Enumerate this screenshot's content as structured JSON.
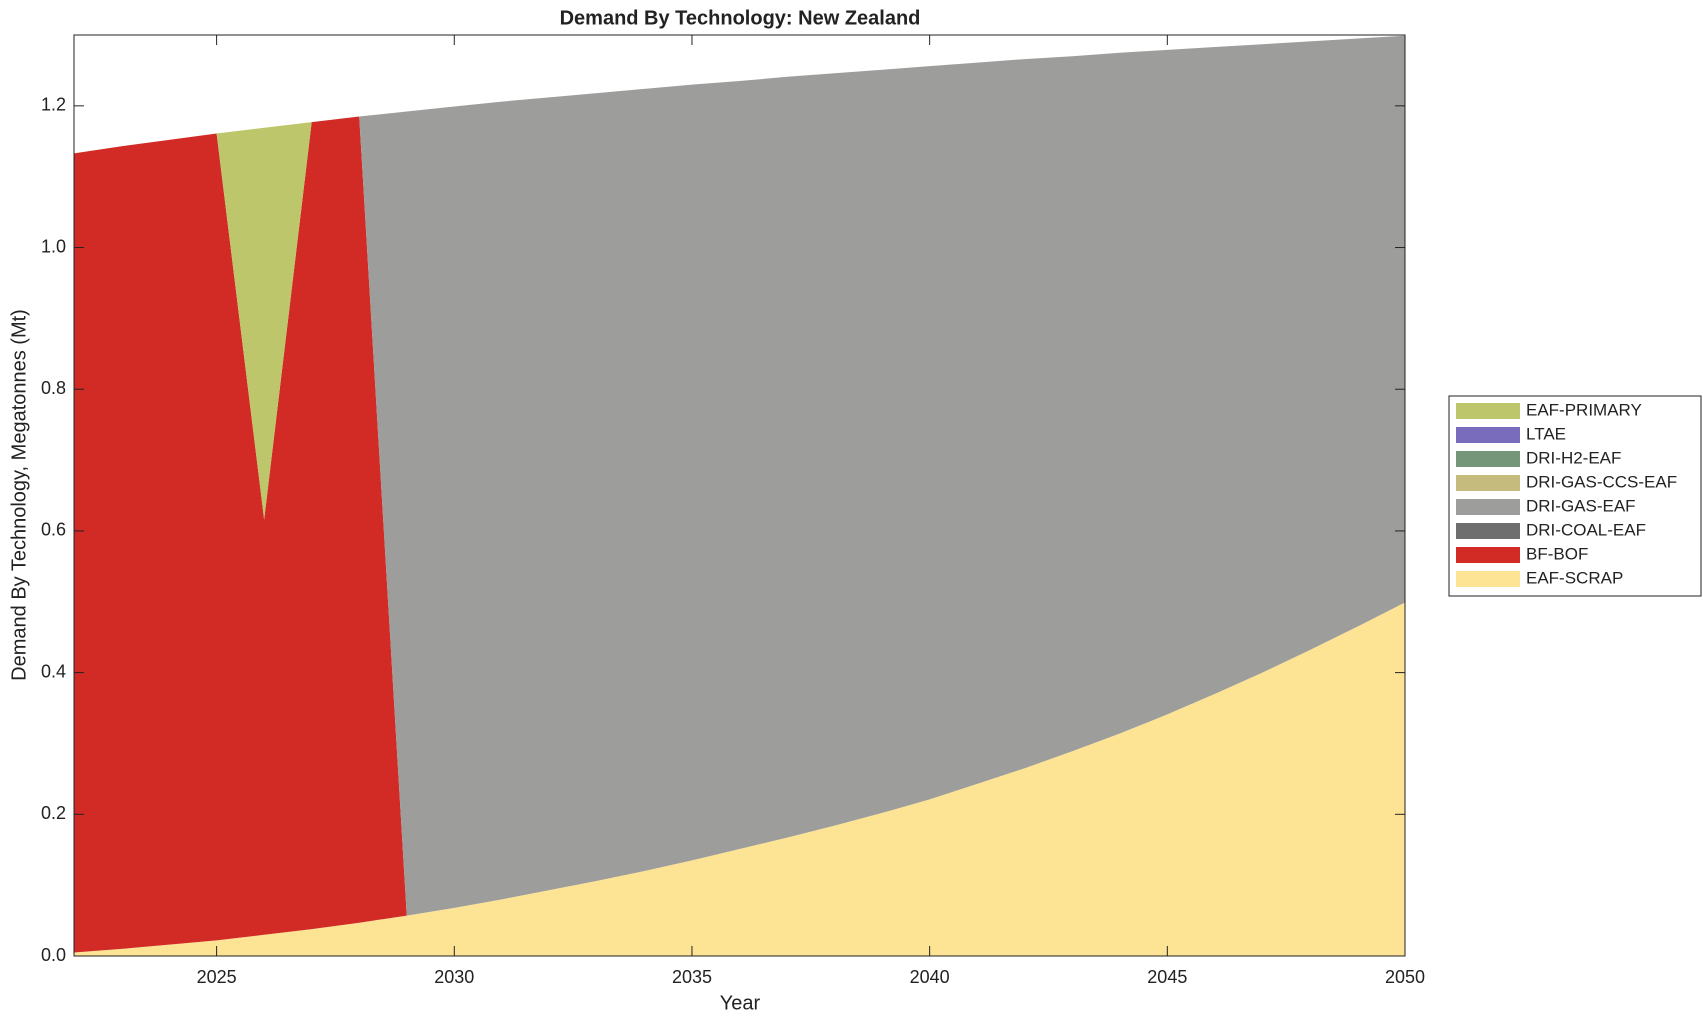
{
  "chart_data": {
    "type": "stacked-area",
    "title": "Demand By Technology: New Zealand",
    "x_label": "Year",
    "y_label": "Demand By Technology, Megatonnes (Mt)",
    "x": [
      2022,
      2023,
      2024,
      2025,
      2026,
      2027,
      2028,
      2029,
      2030,
      2031,
      2032,
      2033,
      2034,
      2035,
      2036,
      2037,
      2038,
      2039,
      2040,
      2041,
      2042,
      2043,
      2044,
      2045,
      2046,
      2047,
      2048,
      2049,
      2050
    ],
    "series": [
      {
        "name": "EAF-SCRAP",
        "color": "#fde394",
        "values": [
          0.005,
          0.01,
          0.016,
          0.022,
          0.03,
          0.038,
          0.047,
          0.057,
          0.068,
          0.08,
          0.093,
          0.106,
          0.12,
          0.135,
          0.151,
          0.167,
          0.184,
          0.202,
          0.221,
          0.243,
          0.265,
          0.289,
          0.314,
          0.341,
          0.37,
          0.4,
          0.432,
          0.465,
          0.499
        ]
      },
      {
        "name": "BF-BOF",
        "color": "#d22b25",
        "values": [
          1.128,
          1.133,
          1.136,
          1.139,
          0.586,
          1.139,
          1.138,
          0,
          0,
          0,
          0,
          0,
          0,
          0,
          0,
          0,
          0,
          0,
          0,
          0,
          0,
          0,
          0,
          0,
          0,
          0,
          0,
          0,
          0
        ]
      },
      {
        "name": "DRI-COAL-EAF",
        "color": "#6e6e6e",
        "values": [
          0,
          0,
          0,
          0,
          0,
          0,
          0,
          0,
          0,
          0,
          0,
          0,
          0,
          0,
          0,
          0,
          0,
          0,
          0,
          0,
          0,
          0,
          0,
          0,
          0,
          0,
          0,
          0,
          0
        ]
      },
      {
        "name": "DRI-GAS-EAF",
        "color": "#9d9d9b",
        "values": [
          0,
          0,
          0,
          0,
          0,
          0,
          0,
          1.135,
          1.131,
          1.126,
          1.119,
          1.112,
          1.104,
          1.095,
          1.084,
          1.074,
          1.062,
          1.049,
          1.035,
          1.018,
          1.001,
          0.981,
          0.961,
          0.938,
          0.913,
          0.887,
          0.859,
          0.83,
          0.8
        ]
      },
      {
        "name": "DRI-GAS-CCS-EAF",
        "color": "#c4bb7c",
        "values": [
          0,
          0,
          0,
          0,
          0,
          0,
          0,
          0,
          0,
          0,
          0,
          0,
          0,
          0,
          0,
          0,
          0,
          0,
          0,
          0,
          0,
          0,
          0,
          0,
          0,
          0,
          0,
          0,
          0
        ]
      },
      {
        "name": "DRI-H2-EAF",
        "color": "#76967a",
        "values": [
          0,
          0,
          0,
          0,
          0,
          0,
          0,
          0,
          0,
          0,
          0,
          0,
          0,
          0,
          0,
          0,
          0,
          0,
          0,
          0,
          0,
          0,
          0,
          0,
          0,
          0,
          0,
          0,
          0
        ]
      },
      {
        "name": "LTAE",
        "color": "#7a6cbd",
        "values": [
          0,
          0,
          0,
          0,
          0,
          0,
          0,
          0,
          0,
          0,
          0,
          0,
          0,
          0,
          0,
          0,
          0,
          0,
          0,
          0,
          0,
          0,
          0,
          0,
          0,
          0,
          0,
          0,
          0
        ]
      },
      {
        "name": "EAF-PRIMARY",
        "color": "#bdc66b",
        "values": [
          0,
          0,
          0,
          0,
          0.553,
          0,
          0,
          0,
          0,
          0,
          0,
          0,
          0,
          0,
          0,
          0,
          0,
          0,
          0,
          0,
          0,
          0,
          0,
          0,
          0,
          0,
          0,
          0,
          0
        ]
      }
    ],
    "xlim": [
      2022,
      2050
    ],
    "xticks": [
      2025,
      2030,
      2035,
      2040,
      2045,
      2050
    ],
    "ylim": [
      0,
      1.3
    ],
    "yticks": [
      {
        "value": 0,
        "label": "0.0"
      },
      0.2,
      0.4,
      0.6,
      0.8,
      {
        "value": 1,
        "label": "1.0"
      },
      1.2
    ],
    "legend": "right"
  }
}
